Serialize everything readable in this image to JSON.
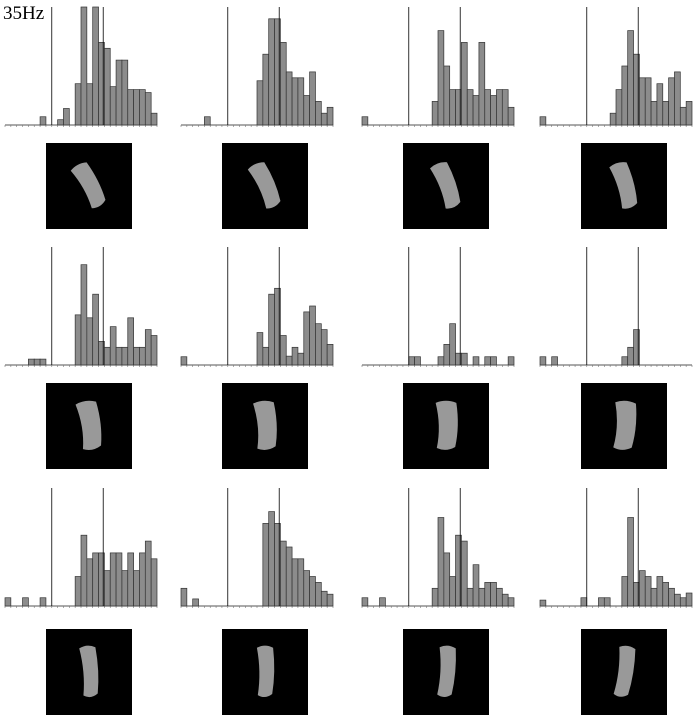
{
  "label": "35Hz",
  "chart_data": [
    {
      "type": "bar",
      "ylim": [
        0,
        20
      ],
      "reference_lines": [
        8,
        16.8
      ],
      "values": [
        0,
        0,
        0,
        0,
        0,
        0,
        1.4,
        0,
        0,
        0.9,
        2.8,
        0,
        7,
        20,
        7,
        20,
        14,
        13,
        6.5,
        11,
        11,
        6,
        6,
        6,
        5.5,
        2
      ]
    },
    {
      "type": "bar",
      "ylim": [
        0,
        20
      ],
      "reference_lines": [
        8,
        16.8
      ],
      "values": [
        0,
        0,
        0,
        0,
        1.4,
        0,
        0,
        0,
        0,
        0,
        0,
        0,
        0,
        7.5,
        12,
        18,
        18,
        14,
        9,
        8,
        8,
        5,
        9,
        4,
        2,
        3
      ]
    },
    {
      "type": "bar",
      "ylim": [
        0,
        20
      ],
      "reference_lines": [
        8,
        16.8
      ],
      "values": [
        1.4,
        0,
        0,
        0,
        0,
        0,
        0,
        0,
        0,
        0,
        0,
        0,
        4,
        16,
        10,
        6,
        6,
        14,
        6,
        5,
        14,
        6,
        5,
        6,
        6,
        3
      ]
    },
    {
      "type": "bar",
      "ylim": [
        0,
        20
      ],
      "reference_lines": [
        8,
        16.8
      ],
      "values": [
        1.4,
        0,
        0,
        0,
        0,
        0,
        0,
        0,
        0,
        0,
        0,
        0,
        2,
        6,
        10,
        16,
        12,
        8,
        8,
        4,
        7,
        4,
        8,
        9,
        3,
        4
      ]
    },
    {
      "type": "bar",
      "ylim": [
        0,
        20
      ],
      "reference_lines": [
        8,
        16.8
      ],
      "values": [
        0,
        0,
        0,
        0,
        1,
        1,
        1,
        0,
        0,
        0,
        0,
        0,
        8.5,
        17,
        8,
        12,
        4,
        3,
        6.5,
        3,
        3,
        8,
        3,
        3,
        6,
        5
      ]
    },
    {
      "type": "bar",
      "ylim": [
        0,
        20
      ],
      "reference_lines": [
        8,
        16.8
      ],
      "values": [
        1.4,
        0,
        0,
        0,
        0,
        0,
        0,
        0,
        0,
        0,
        0,
        0,
        0,
        5.5,
        3,
        12,
        13,
        5,
        1.5,
        3,
        2,
        9,
        10,
        7,
        6,
        3.5
      ]
    },
    {
      "type": "bar",
      "ylim": [
        0,
        20
      ],
      "reference_lines": [
        8,
        16.8
      ],
      "values": [
        0,
        0,
        0,
        0,
        0,
        0,
        0,
        0,
        1.4,
        1.4,
        0,
        0,
        0,
        1.4,
        3.5,
        7,
        2,
        2,
        0,
        1.4,
        0,
        1.4,
        1.4,
        0,
        0,
        1.4
      ]
    },
    {
      "type": "bar",
      "ylim": [
        0,
        20
      ],
      "reference_lines": [
        8,
        16.8
      ],
      "values": [
        1.4,
        0,
        1.4,
        0,
        0,
        0,
        0,
        0,
        0,
        0,
        0,
        0,
        0,
        0,
        1.4,
        3,
        6,
        0,
        0,
        0,
        0,
        0,
        0,
        0,
        0,
        0
      ]
    },
    {
      "type": "bar",
      "ylim": [
        0,
        20
      ],
      "reference_lines": [
        8,
        16.8
      ],
      "values": [
        1.4,
        0,
        0,
        1.4,
        0,
        0,
        1.4,
        0,
        0,
        0,
        0,
        0,
        5,
        12,
        8,
        9,
        9,
        6,
        9,
        9,
        6,
        9,
        6,
        9,
        11,
        8
      ]
    },
    {
      "type": "bar",
      "ylim": [
        0,
        20
      ],
      "reference_lines": [
        8,
        16.8
      ],
      "values": [
        3,
        0,
        1.2,
        0,
        0,
        0,
        0,
        0,
        0,
        0,
        0,
        0,
        0,
        0,
        14,
        16,
        14,
        11,
        10,
        8,
        8,
        6,
        5,
        4,
        2.5,
        2
      ]
    },
    {
      "type": "bar",
      "ylim": [
        0,
        20
      ],
      "reference_lines": [
        8,
        16.8
      ],
      "values": [
        1.4,
        0,
        0,
        1.4,
        0,
        0,
        0,
        0,
        0,
        0,
        0,
        0,
        3,
        15,
        9,
        5,
        12,
        11,
        3,
        7,
        3,
        4,
        4,
        3,
        2,
        1.4
      ]
    },
    {
      "type": "bar",
      "ylim": [
        0,
        20
      ],
      "reference_lines": [
        8,
        16.8
      ],
      "values": [
        1,
        0,
        0,
        0,
        0,
        0,
        0,
        1.4,
        0,
        0,
        1.4,
        1.4,
        0,
        0,
        5,
        15,
        4,
        6,
        5,
        3,
        5,
        4,
        3,
        2,
        1.4,
        2.2
      ]
    }
  ]
}
